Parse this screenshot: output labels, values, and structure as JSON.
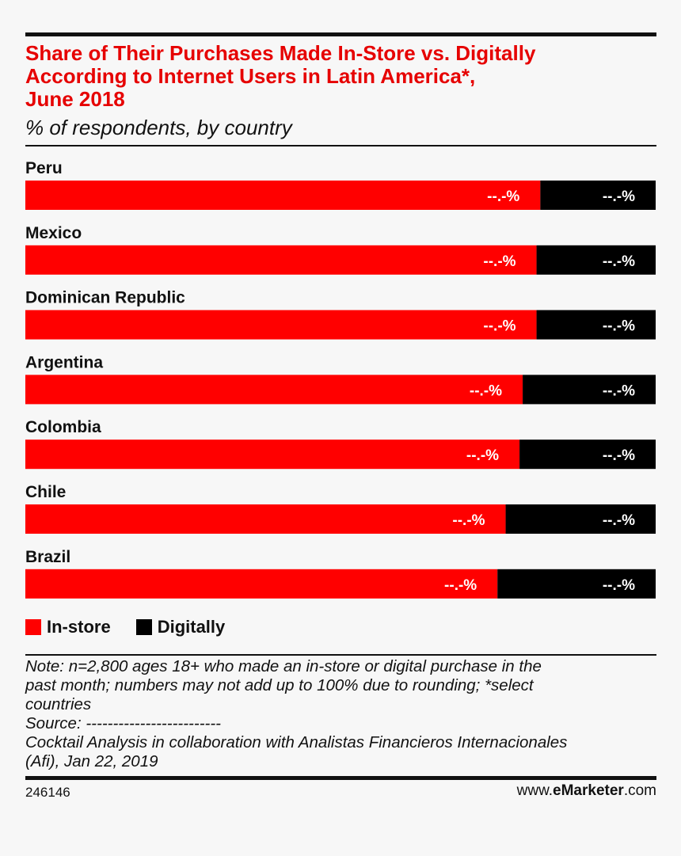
{
  "header": {
    "title_lines": [
      "Share of Their Purchases Made In-Store vs. Digitally",
      "According to Internet Users in Latin America*,",
      "June 2018"
    ],
    "subtitle": "% of respondents, by country"
  },
  "colors": {
    "in_store": "#ff0000",
    "digitally": "#000000",
    "title": "#e60000"
  },
  "chart_data": {
    "type": "bar",
    "orientation": "horizontal",
    "stacked": true,
    "title": "Share of Their Purchases Made In-Store vs. Digitally According to Internet Users in Latin America*, June 2018",
    "subtitle": "% of respondents, by country",
    "categories": [
      "Peru",
      "Mexico",
      "Dominican Republic",
      "Argentina",
      "Colombia",
      "Chile",
      "Brazil"
    ],
    "series": [
      {
        "name": "In-store",
        "values": [
          81.7,
          81.1,
          81.1,
          78.9,
          78.4,
          76.2,
          74.9
        ],
        "labels": [
          "--.-%",
          "--.-%",
          "--.-%",
          "--.-%",
          "--.-%",
          "--.-%",
          "--.-%"
        ]
      },
      {
        "name": "Digitally",
        "values": [
          18.3,
          18.9,
          18.9,
          21.1,
          21.6,
          23.8,
          25.1
        ],
        "labels": [
          "--.-%",
          "--.-%",
          "--.-%",
          "--.-%",
          "--.-%",
          "--.-%",
          "--.-%"
        ]
      }
    ],
    "xlim": [
      0,
      100
    ],
    "grid": false,
    "legend": "bottom-left"
  },
  "legend": {
    "in_store_label": "In-store",
    "digitally_label": "Digitally"
  },
  "note": {
    "lines": [
      "Note: n=2,800 ages 18+ who made an in-store or digital purchase in the",
      "past month; numbers may not add up to 100% due to rounding; *select",
      "countries",
      "Source: -------------------------",
      "Cocktail Analysis in collaboration with Analistas Financieros Internacionales",
      "(Afi), Jan 22, 2019"
    ]
  },
  "footer": {
    "chart_id": "246146",
    "brand_prefix": "www.",
    "brand_name": "eMarketer",
    "brand_suffix": ".com"
  }
}
